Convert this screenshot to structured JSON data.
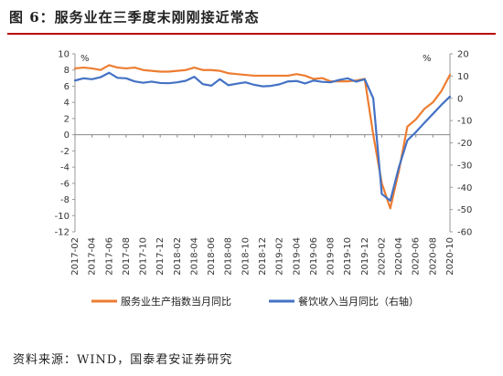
{
  "header": {
    "title": "图 6：服务业在三季度末刚刚接近常态"
  },
  "footer": {
    "source": "资料来源：WIND，国泰君安证券研究"
  },
  "colors": {
    "orange": "#ED7D31",
    "blue": "#4472C4",
    "rule": "#b70000"
  },
  "chart_data": {
    "type": "line",
    "left_unit": "%",
    "right_unit": "%",
    "left_ylim": [
      -12,
      10
    ],
    "left_ticks": [
      10,
      8,
      6,
      4,
      2,
      0,
      -2,
      -4,
      -6,
      -8,
      -10,
      -12
    ],
    "right_ylim": [
      -60,
      20
    ],
    "right_ticks": [
      20,
      10,
      0,
      -10,
      -20,
      -30,
      -40,
      -50,
      -60
    ],
    "x_tick_labels": [
      "2017-02",
      "2017-04",
      "2017-06",
      "2017-08",
      "2017-10",
      "2017-12",
      "2018-02",
      "2018-04",
      "2018-06",
      "2018-08",
      "2018-10",
      "2018-12",
      "2019-02",
      "2019-04",
      "2019-06",
      "2019-08",
      "2019-10",
      "2019-12",
      "2020-02",
      "2020-04",
      "2020-06",
      "2020-08",
      "2020-10"
    ],
    "x": [
      "2017-02",
      "2017-03",
      "2017-04",
      "2017-05",
      "2017-06",
      "2017-07",
      "2017-08",
      "2017-09",
      "2017-10",
      "2017-11",
      "2017-12",
      "2018-01",
      "2018-02",
      "2018-03",
      "2018-04",
      "2018-05",
      "2018-06",
      "2018-07",
      "2018-08",
      "2018-09",
      "2018-10",
      "2018-11",
      "2018-12",
      "2019-01",
      "2019-02",
      "2019-03",
      "2019-04",
      "2019-05",
      "2019-06",
      "2019-07",
      "2019-08",
      "2019-09",
      "2019-10",
      "2019-11",
      "2019-12",
      "2020-01",
      "2020-02",
      "2020-03",
      "2020-04",
      "2020-05",
      "2020-06",
      "2020-07",
      "2020-08",
      "2020-09",
      "2020-10"
    ],
    "series": [
      {
        "name": "服务业生产指数当月同比",
        "axis": "left",
        "color": "#ED7D31",
        "values": [
          8.2,
          8.3,
          8.2,
          8.0,
          8.6,
          8.3,
          8.2,
          8.3,
          8.0,
          7.9,
          7.8,
          7.8,
          7.9,
          8.0,
          8.3,
          8.0,
          8.0,
          7.9,
          7.6,
          7.5,
          7.4,
          7.3,
          7.3,
          7.3,
          7.3,
          7.3,
          7.5,
          7.3,
          6.9,
          7.0,
          6.6,
          6.6,
          6.6,
          6.7,
          6.9,
          0.0,
          -6.0,
          -9.1,
          -4.5,
          1.0,
          1.9,
          3.2,
          4.0,
          5.4,
          7.4
        ]
      },
      {
        "name": "餐饮收入当月同比（右轴）",
        "axis": "right",
        "color": "#4472C4",
        "values": [
          8.0,
          9.0,
          8.6,
          9.5,
          11.5,
          9.2,
          9.0,
          7.6,
          7.0,
          7.5,
          6.9,
          6.8,
          7.2,
          7.9,
          9.7,
          6.4,
          5.7,
          8.6,
          5.9,
          6.6,
          7.2,
          6.1,
          5.4,
          5.6,
          6.3,
          7.6,
          7.8,
          6.7,
          8.0,
          7.4,
          7.2,
          8.3,
          9.0,
          7.5,
          8.6,
          0.0,
          -43.0,
          -46.0,
          -31.1,
          -18.9,
          -15.2,
          -11.0,
          -7.0,
          -2.9,
          0.8
        ]
      }
    ]
  }
}
